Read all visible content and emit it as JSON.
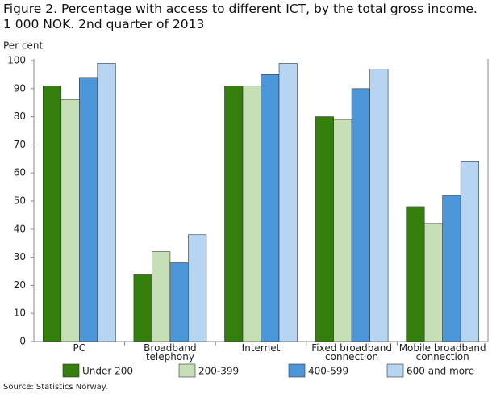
{
  "chart_data": {
    "type": "bar",
    "title": "Figure 2. Percentage with access to different ICT, by the total gross income. 1 000 NOK. 2nd quarter of 2013",
    "y_label": "Per cent",
    "source": "Source: Statistics Norway.",
    "categories": [
      "PC",
      "Broadband telephony",
      "Internet",
      "Fixed broadband connection",
      "Mobile broadband connection"
    ],
    "series": [
      {
        "name": "Under 200",
        "color": "#35800c",
        "values": [
          91,
          24,
          91,
          80,
          48
        ]
      },
      {
        "name": "200-399",
        "color": "#c6dfb6",
        "values": [
          86,
          32,
          91,
          79,
          42
        ]
      },
      {
        "name": "400-599",
        "color": "#4c97da",
        "values": [
          94,
          28,
          95,
          90,
          52
        ]
      },
      {
        "name": "600 and more",
        "color": "#b5d5f3",
        "values": [
          99,
          38,
          99,
          97,
          64
        ]
      }
    ],
    "ylim": [
      0,
      100
    ],
    "yticks": [
      0,
      10,
      20,
      30,
      40,
      50,
      60,
      70,
      80,
      90,
      100
    ],
    "grid": false
  }
}
